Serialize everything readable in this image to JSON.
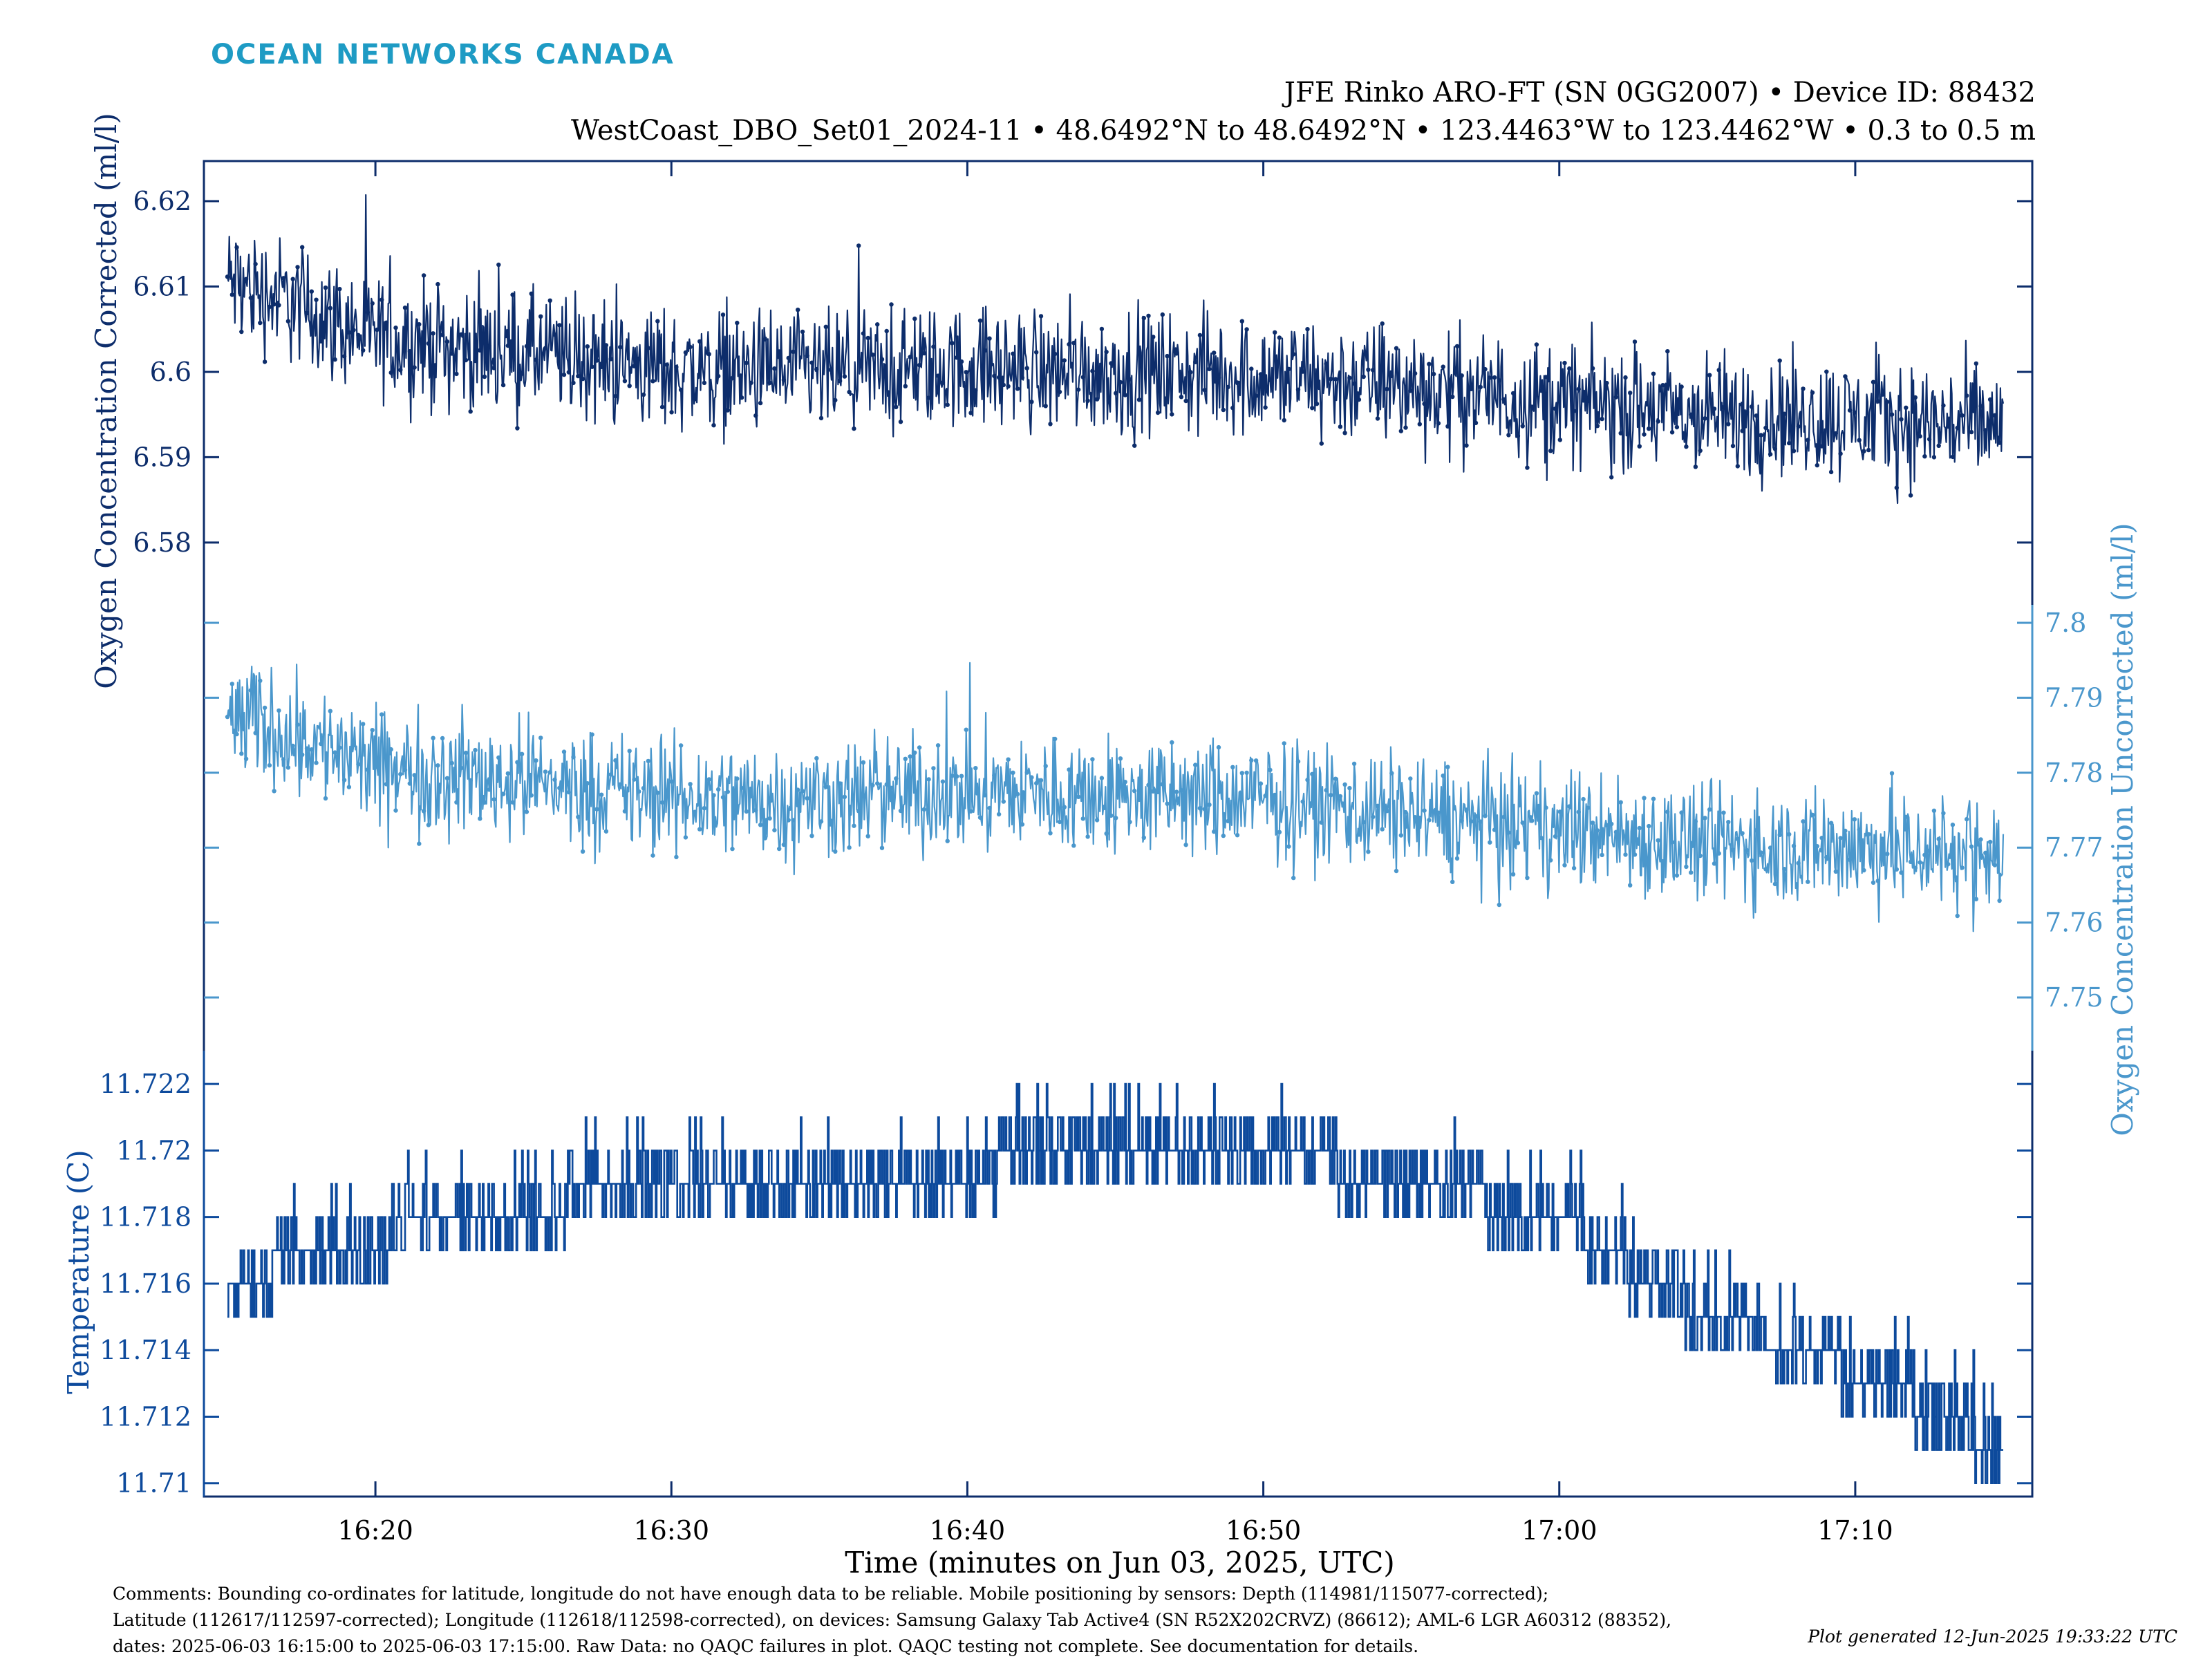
{
  "brand": {
    "logo_text": "OCEAN NETWORKS CANADA",
    "color": "#1e9bc4"
  },
  "header": {
    "title_line1": "JFE Rinko ARO-FT (SN 0GG2007) • Device ID: 88432",
    "title_line2": "WestCoast_DBO_Set01_2024-11 • 48.6492°N to 48.6492°N • 123.4463°W to 123.4462°W • 0.3 to 0.5 m"
  },
  "colors": {
    "corrected": "#0d2d6b",
    "uncorrected": "#4a97cc",
    "temperature": "#0d4a9c",
    "frame": "#0d2d6b"
  },
  "x_axis": {
    "xlabel": "Time (minutes on Jun 03, 2025, UTC)",
    "ticks": [
      "16:20",
      "16:30",
      "16:40",
      "16:50",
      "17:00",
      "17:10"
    ],
    "tick_minutes": [
      5,
      15,
      25,
      35,
      45,
      55
    ],
    "xlim_minutes": [
      0,
      60
    ]
  },
  "footer": {
    "comments_line1": "Comments: Bounding co-ordinates for latitude, longitude do not have enough data to be reliable. Mobile positioning by sensors: Depth (114981/115077-corrected);",
    "comments_line2": "Latitude (112617/112597-corrected); Longitude (112618/112598-corrected), on devices: Samsung Galaxy Tab Active4 (SN R52X202CRVZ) (86612); AML-6 LGR A60312 (88352),",
    "comments_line3": "dates: 2025-06-03 16:15:00 to 2025-06-03 17:15:00. Raw Data: no QAQC failures in plot. QAQC testing not complete. See documentation for details.",
    "generated": "Plot generated 12-Jun-2025 19:33:22 UTC"
  },
  "chart_data": [
    {
      "type": "line",
      "ylabel": "Oxygen Concentration Corrected (ml/l)",
      "yticks": [
        "6.62",
        "6.61",
        "6.6",
        "6.59",
        "6.58"
      ],
      "ylim": [
        6.5727,
        6.6247
      ],
      "x_minutes": [
        0,
        2,
        5,
        10,
        15,
        20,
        25,
        30,
        35,
        40,
        45,
        50,
        55,
        60
      ],
      "trend": [
        6.6105,
        6.6085,
        6.6038,
        6.6022,
        6.6003,
        6.5996,
        6.6005,
        6.6,
        6.5995,
        6.5983,
        6.5965,
        6.5948,
        6.5945,
        6.5935
      ],
      "noise_range": 0.0105
    },
    {
      "type": "line",
      "ylabel": "Oxygen Concentration Uncorrected (ml/l)",
      "yticks": [
        "7.8",
        "7.79",
        "7.78",
        "7.77",
        "7.76",
        "7.75"
      ],
      "ylim": [
        7.7429,
        7.8024
      ],
      "x_minutes": [
        0,
        2,
        5,
        10,
        15,
        20,
        25,
        30,
        35,
        40,
        45,
        50,
        55,
        60
      ],
      "trend": [
        7.7875,
        7.7855,
        7.7805,
        7.779,
        7.7765,
        7.7765,
        7.7775,
        7.777,
        7.7763,
        7.7745,
        7.7725,
        7.7705,
        7.77,
        7.769
      ],
      "noise_range": 0.0115
    },
    {
      "type": "step",
      "ylabel": "Temperature (C)",
      "yticks": [
        "11.722",
        "11.72",
        "11.718",
        "11.716",
        "11.714",
        "11.712",
        "11.71"
      ],
      "ylim": [
        11.7096,
        11.723
      ],
      "x_minutes": [
        0,
        3,
        8,
        15,
        22,
        30,
        35,
        40,
        45,
        48,
        53,
        56,
        60
      ],
      "levels": [
        11.716,
        11.717,
        11.718,
        11.719,
        11.719,
        11.72,
        11.72,
        11.719,
        11.718,
        11.716,
        11.714,
        11.713,
        11.711
      ],
      "resolution": 0.001
    }
  ]
}
